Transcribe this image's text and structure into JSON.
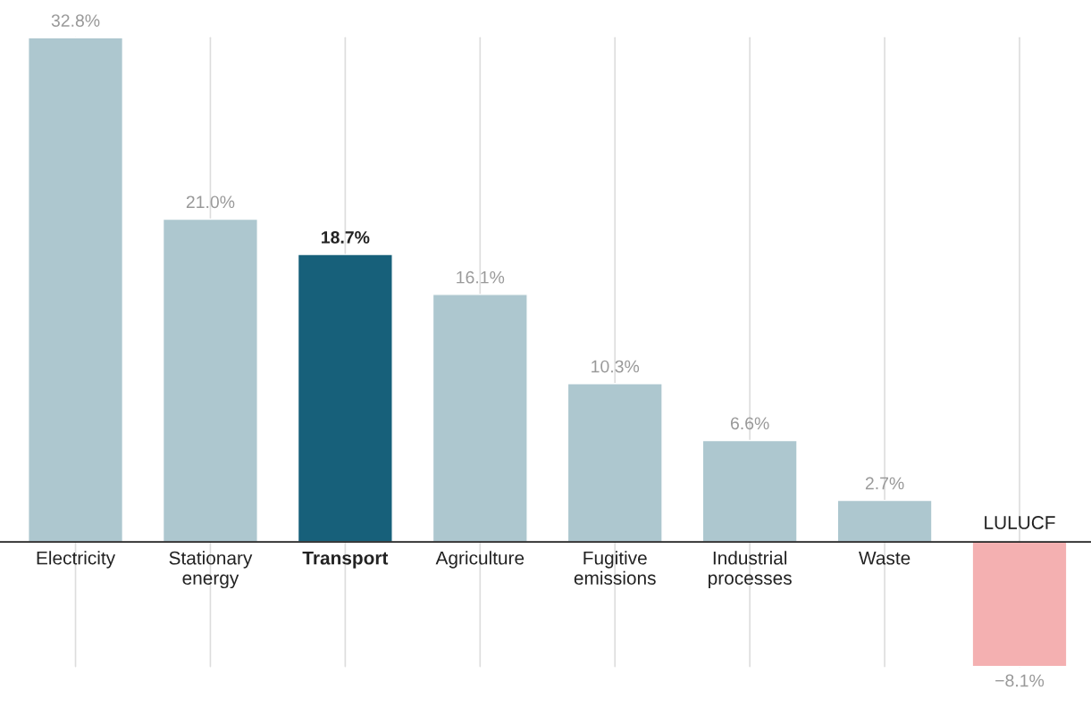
{
  "chart_data": {
    "type": "bar",
    "categories": [
      "Electricity",
      "Stationary\nenergy",
      "Transport",
      "Agriculture",
      "Fugitive\nemissions",
      "Industrial\nprocesses",
      "Waste",
      "LULUCF"
    ],
    "values": [
      32.8,
      21.0,
      18.7,
      16.1,
      10.3,
      6.6,
      2.7,
      -8.1
    ],
    "value_labels": [
      "32.8%",
      "21.0%",
      "18.7%",
      "16.1%",
      "10.3%",
      "6.6%",
      "2.7%",
      "−8.1%"
    ],
    "colors": [
      "#adc7cf",
      "#adc7cf",
      "#17607a",
      "#adc7cf",
      "#adc7cf",
      "#adc7cf",
      "#adc7cf",
      "#f4b0b1"
    ],
    "grid": "x"
  }
}
